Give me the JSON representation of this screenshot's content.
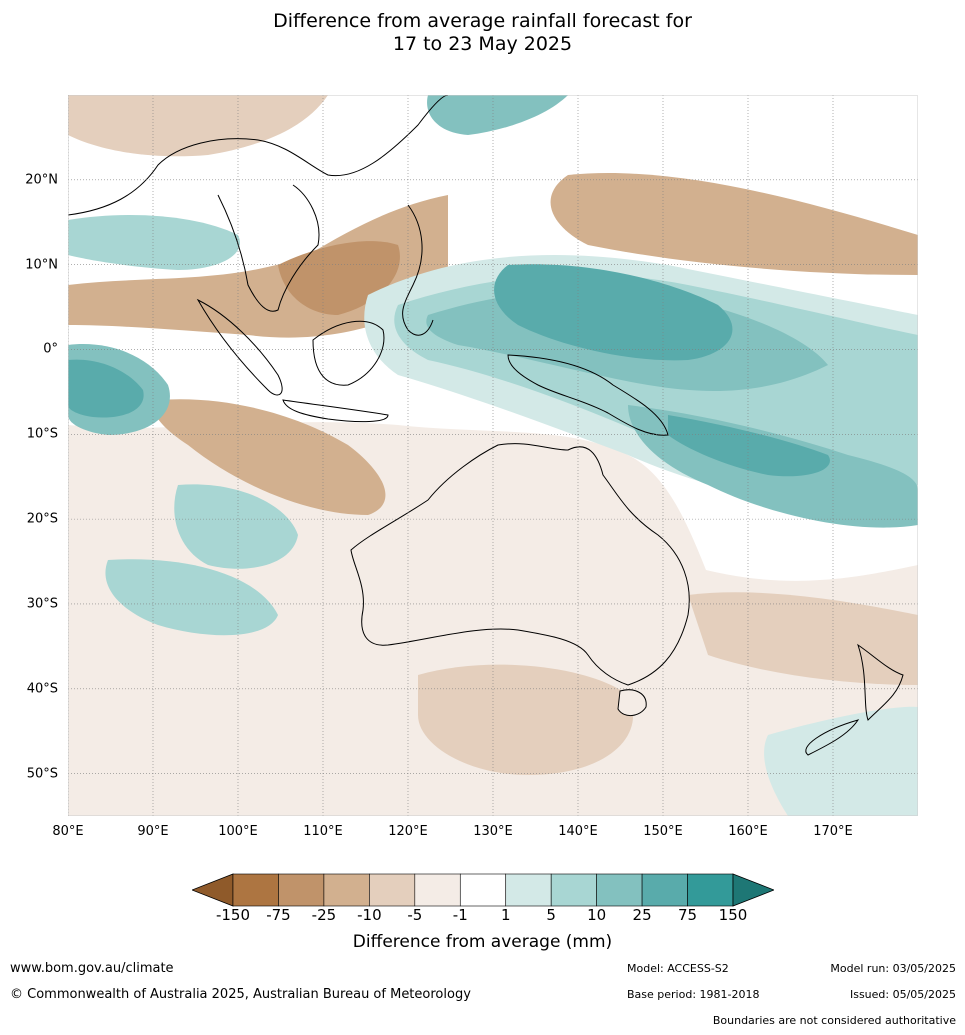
{
  "title_line1": "Difference from average rainfall forecast for",
  "title_line2": "17 to 23 May 2025",
  "map": {
    "lon_range": [
      80,
      180
    ],
    "lat_range": [
      -55,
      30
    ],
    "lat_labels": [
      "20°N",
      "10°N",
      "0°",
      "10°S",
      "20°S",
      "30°S",
      "40°S",
      "50°S"
    ],
    "lat_values": [
      20,
      10,
      0,
      -10,
      -20,
      -30,
      -40,
      -50
    ],
    "lon_labels": [
      "80°E",
      "90°E",
      "100°E",
      "110°E",
      "120°E",
      "130°E",
      "140°E",
      "150°E",
      "160°E",
      "170°E"
    ],
    "lon_values": [
      80,
      90,
      100,
      110,
      120,
      130,
      140,
      150,
      160,
      170
    ]
  },
  "colorbar": {
    "ticks": [
      "-150",
      "-75",
      "-25",
      "-10",
      "-5",
      "-1",
      "1",
      "5",
      "10",
      "25",
      "75",
      "150"
    ],
    "colors": [
      "#8f5a2a",
      "#ad7541",
      "#c0936a",
      "#d2b08f",
      "#e4cfbd",
      "#f4ece6",
      "#ffffff",
      "#d3e9e7",
      "#a8d6d3",
      "#83c1bf",
      "#59abab",
      "#339a99",
      "#1e7775"
    ],
    "label": "Difference from average (mm)"
  },
  "footer": {
    "website": "www.bom.gov.au/climate",
    "copyright": "© Commonwealth of Australia 2025, Australian Bureau of Meteorology",
    "model": "Model: ACCESS-S2",
    "base_period": "Base period: 1981-2018",
    "model_run": "Model run: 03/05/2025",
    "issued": "Issued: 05/05/2025",
    "disclaimer": "Boundaries are not considered authoritative"
  }
}
